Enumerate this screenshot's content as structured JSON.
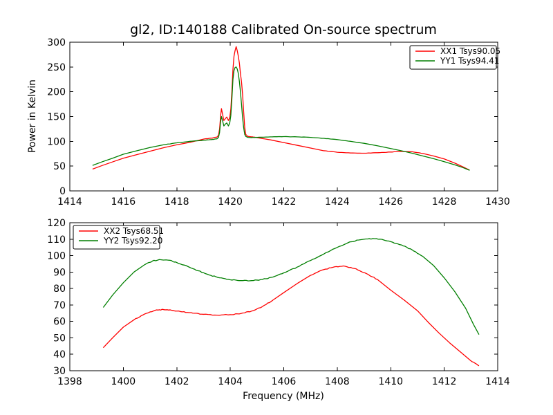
{
  "figure": {
    "title": "gl2, ID:140188 Calibrated On-source spectrum",
    "background_color": "#ffffff",
    "frame_color": "#000000",
    "text_color": "#000000"
  },
  "chart_data": [
    {
      "type": "line",
      "title": "gl2, ID:140188 Calibrated On-source spectrum",
      "xlabel": "",
      "ylabel": "Power in Kelvin",
      "xlim": [
        1414,
        1430
      ],
      "ylim": [
        0,
        300
      ],
      "xticks": [
        1414,
        1416,
        1418,
        1420,
        1422,
        1424,
        1426,
        1428,
        1430
      ],
      "yticks": [
        0,
        50,
        100,
        150,
        200,
        250,
        300
      ],
      "grid": false,
      "legend_position": "upper right",
      "series": [
        {
          "name": "XX1 Tsys90.05",
          "color": "#ff0000",
          "points": [
            [
              1414.85,
              44
            ],
            [
              1415.2,
              51
            ],
            [
              1415.6,
              58.5
            ],
            [
              1416,
              66
            ],
            [
              1416.5,
              73
            ],
            [
              1417,
              80
            ],
            [
              1417.5,
              87
            ],
            [
              1418,
              93
            ],
            [
              1418.5,
              98
            ],
            [
              1419,
              104.5
            ],
            [
              1419.3,
              106.5
            ],
            [
              1419.5,
              108.5
            ],
            [
              1419.56,
              112
            ],
            [
              1419.6,
              125
            ],
            [
              1419.64,
              152
            ],
            [
              1419.67,
              166
            ],
            [
              1419.71,
              155
            ],
            [
              1419.76,
              142
            ],
            [
              1419.82,
              146
            ],
            [
              1419.87,
              149
            ],
            [
              1419.93,
              142
            ],
            [
              1419.98,
              148
            ],
            [
              1420.02,
              165
            ],
            [
              1420.06,
              200
            ],
            [
              1420.1,
              245
            ],
            [
              1420.14,
              272
            ],
            [
              1420.18,
              283
            ],
            [
              1420.22,
              291
            ],
            [
              1420.26,
              283
            ],
            [
              1420.3,
              272
            ],
            [
              1420.34,
              258
            ],
            [
              1420.38,
              237
            ],
            [
              1420.42,
              220
            ],
            [
              1420.46,
              195
            ],
            [
              1420.5,
              160
            ],
            [
              1420.54,
              128
            ],
            [
              1420.58,
              114
            ],
            [
              1420.65,
              110
            ],
            [
              1420.8,
              109
            ],
            [
              1421,
              107.5
            ],
            [
              1421.5,
              103
            ],
            [
              1422,
              97.5
            ],
            [
              1422.5,
              92
            ],
            [
              1423,
              86.5
            ],
            [
              1423.5,
              81
            ],
            [
              1424,
              78
            ],
            [
              1424.5,
              76.5
            ],
            [
              1425,
              76
            ],
            [
              1425.5,
              77
            ],
            [
              1426,
              78.5
            ],
            [
              1426.4,
              79.5
            ],
            [
              1426.8,
              79
            ],
            [
              1427.2,
              75.5
            ],
            [
              1427.6,
              70.5
            ],
            [
              1428,
              64.5
            ],
            [
              1428.4,
              56
            ],
            [
              1428.7,
              48.5
            ],
            [
              1428.95,
              42
            ]
          ]
        },
        {
          "name": "YY1 Tsys94.41",
          "color": "#007f00",
          "points": [
            [
              1414.85,
              51.5
            ],
            [
              1415.2,
              58.5
            ],
            [
              1415.6,
              66
            ],
            [
              1416,
              74
            ],
            [
              1416.5,
              81
            ],
            [
              1417,
              87.5
            ],
            [
              1417.5,
              93
            ],
            [
              1418,
              97
            ],
            [
              1418.5,
              100
            ],
            [
              1419,
              102
            ],
            [
              1419.3,
              103.5
            ],
            [
              1419.5,
              105
            ],
            [
              1419.56,
              108
            ],
            [
              1419.6,
              118
            ],
            [
              1419.64,
              140
            ],
            [
              1419.67,
              150
            ],
            [
              1419.71,
              142
            ],
            [
              1419.76,
              131
            ],
            [
              1419.82,
              135
            ],
            [
              1419.87,
              137
            ],
            [
              1419.93,
              131
            ],
            [
              1419.98,
              137
            ],
            [
              1420.02,
              152
            ],
            [
              1420.06,
              185
            ],
            [
              1420.1,
              225
            ],
            [
              1420.14,
              243
            ],
            [
              1420.18,
              249
            ],
            [
              1420.22,
              250
            ],
            [
              1420.26,
              246
            ],
            [
              1420.3,
              237
            ],
            [
              1420.34,
              221
            ],
            [
              1420.38,
              200
            ],
            [
              1420.42,
              175
            ],
            [
              1420.46,
              148
            ],
            [
              1420.5,
              128
            ],
            [
              1420.54,
              114
            ],
            [
              1420.58,
              110
            ],
            [
              1420.65,
              108
            ],
            [
              1420.8,
              107.5
            ],
            [
              1421,
              108
            ],
            [
              1421.5,
              109
            ],
            [
              1422,
              109.5
            ],
            [
              1422.5,
              109
            ],
            [
              1423,
              108
            ],
            [
              1423.5,
              106
            ],
            [
              1424,
              103.5
            ],
            [
              1424.5,
              100
            ],
            [
              1425,
              96
            ],
            [
              1425.5,
              91
            ],
            [
              1426,
              85.5
            ],
            [
              1426.4,
              81
            ],
            [
              1426.8,
              76
            ],
            [
              1427.2,
              70.5
            ],
            [
              1427.6,
              65
            ],
            [
              1428,
              59
            ],
            [
              1428.4,
              52.5
            ],
            [
              1428.7,
              47
            ],
            [
              1428.95,
              41.5
            ]
          ]
        }
      ]
    },
    {
      "type": "line",
      "title": "",
      "xlabel": "Frequency (MHz)",
      "ylabel": "",
      "xlim": [
        1398,
        1414
      ],
      "ylim": [
        30,
        120
      ],
      "xticks": [
        1398,
        1400,
        1402,
        1404,
        1406,
        1408,
        1410,
        1412,
        1414
      ],
      "yticks": [
        30,
        40,
        50,
        60,
        70,
        80,
        90,
        100,
        110,
        120
      ],
      "grid": false,
      "legend_position": "upper left",
      "series": [
        {
          "name": "XX2 Tsys68.51",
          "color": "#ff0000",
          "points": [
            [
              1399.25,
              44
            ],
            [
              1399.6,
              50
            ],
            [
              1400,
              56.5
            ],
            [
              1400.4,
              61
            ],
            [
              1400.8,
              64.5
            ],
            [
              1401.2,
              66.8
            ],
            [
              1401.5,
              67.2
            ],
            [
              1401.8,
              66.8
            ],
            [
              1402.2,
              65.8
            ],
            [
              1402.6,
              65
            ],
            [
              1403,
              64.3
            ],
            [
              1403.5,
              63.8
            ],
            [
              1404,
              64.1
            ],
            [
              1404.4,
              64.8
            ],
            [
              1404.8,
              66.3
            ],
            [
              1405.2,
              69
            ],
            [
              1405.6,
              73
            ],
            [
              1406,
              77.5
            ],
            [
              1406.5,
              83
            ],
            [
              1407,
              88
            ],
            [
              1407.5,
              91.5
            ],
            [
              1407.9,
              93.2
            ],
            [
              1408.3,
              93.5
            ],
            [
              1408.7,
              92
            ],
            [
              1409.1,
              89
            ],
            [
              1409.5,
              85.5
            ],
            [
              1410,
              79
            ],
            [
              1410.5,
              73
            ],
            [
              1411,
              66.5
            ],
            [
              1411.4,
              59.5
            ],
            [
              1411.8,
              53
            ],
            [
              1412.2,
              47
            ],
            [
              1412.6,
              41.5
            ],
            [
              1413,
              36
            ],
            [
              1413.3,
              33
            ]
          ]
        },
        {
          "name": "YY2 Tsys92.20",
          "color": "#007f00",
          "points": [
            [
              1399.25,
              68.5
            ],
            [
              1399.6,
              76
            ],
            [
              1400,
              83.5
            ],
            [
              1400.4,
              90
            ],
            [
              1400.8,
              94.5
            ],
            [
              1401.1,
              96.8
            ],
            [
              1401.4,
              97.5
            ],
            [
              1401.7,
              97.2
            ],
            [
              1402,
              95.8
            ],
            [
              1402.4,
              93.5
            ],
            [
              1402.8,
              90.8
            ],
            [
              1403.2,
              88.3
            ],
            [
              1403.6,
              86.5
            ],
            [
              1404,
              85.3
            ],
            [
              1404.4,
              84.8
            ],
            [
              1404.8,
              84.8
            ],
            [
              1405.2,
              85.5
            ],
            [
              1405.6,
              87
            ],
            [
              1406,
              89.5
            ],
            [
              1406.5,
              93
            ],
            [
              1407,
              97
            ],
            [
              1407.5,
              101
            ],
            [
              1408,
              105
            ],
            [
              1408.4,
              107.8
            ],
            [
              1408.8,
              109.5
            ],
            [
              1409.2,
              110.3
            ],
            [
              1409.6,
              110
            ],
            [
              1410,
              108.5
            ],
            [
              1410.4,
              106.5
            ],
            [
              1410.8,
              103.5
            ],
            [
              1411.2,
              99.5
            ],
            [
              1411.6,
              94
            ],
            [
              1412,
              86.5
            ],
            [
              1412.4,
              78
            ],
            [
              1412.8,
              68
            ],
            [
              1413.1,
              58
            ],
            [
              1413.3,
              52
            ]
          ]
        }
      ]
    }
  ]
}
